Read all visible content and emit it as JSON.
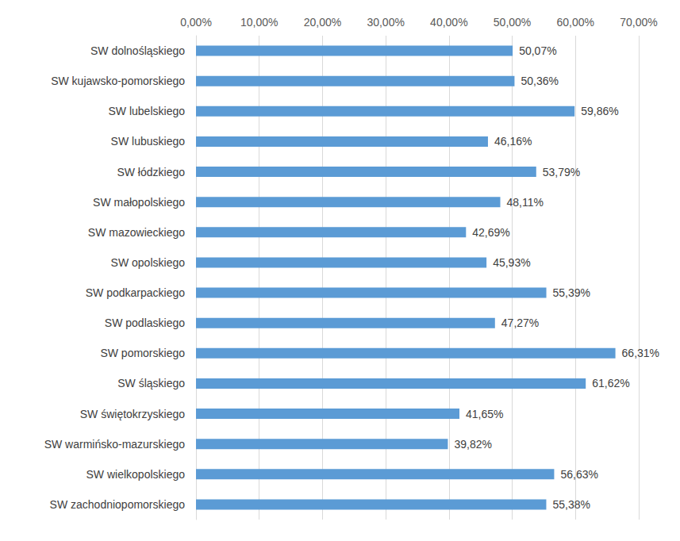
{
  "chart_data": {
    "type": "bar",
    "orientation": "horizontal",
    "categories": [
      "SW dolnośląskiego",
      "SW kujawsko-pomorskiego",
      "SW lubelskiego",
      "SW lubuskiego",
      "SW łódzkiego",
      "SW małopolskiego",
      "SW mazowieckiego",
      "SW opolskiego",
      "SW podkarpackiego",
      "SW podlaskiego",
      "SW pomorskiego",
      "SW śląskiego",
      "SW świętokrzyskiego",
      "SW warmińsko-mazurskiego",
      "SW wielkopolskiego",
      "SW zachodniopomorskiego"
    ],
    "values": [
      50.07,
      50.36,
      59.86,
      46.16,
      53.79,
      48.11,
      42.69,
      45.93,
      55.39,
      47.27,
      66.31,
      61.62,
      41.65,
      39.82,
      56.63,
      55.38
    ],
    "value_labels": [
      "50,07%",
      "50,36%",
      "59,86%",
      "46,16%",
      "53,79%",
      "48,11%",
      "42,69%",
      "45,93%",
      "55,39%",
      "47,27%",
      "66,31%",
      "61,62%",
      "41,65%",
      "39,82%",
      "56,63%",
      "55,38%"
    ],
    "color": "#5b9bd5",
    "xlim": [
      0,
      70
    ],
    "xticks": [
      {
        "value": 0,
        "label": "0,00%"
      },
      {
        "value": 10,
        "label": "10,00%"
      },
      {
        "value": 20,
        "label": "20,00%"
      },
      {
        "value": 30,
        "label": "30,00%"
      },
      {
        "value": 40,
        "label": "40,00%"
      },
      {
        "value": 50,
        "label": "50,00%"
      },
      {
        "value": 60,
        "label": "60,00%"
      },
      {
        "value": 70,
        "label": "70,00%"
      }
    ],
    "grid": true,
    "data_labels": true
  }
}
